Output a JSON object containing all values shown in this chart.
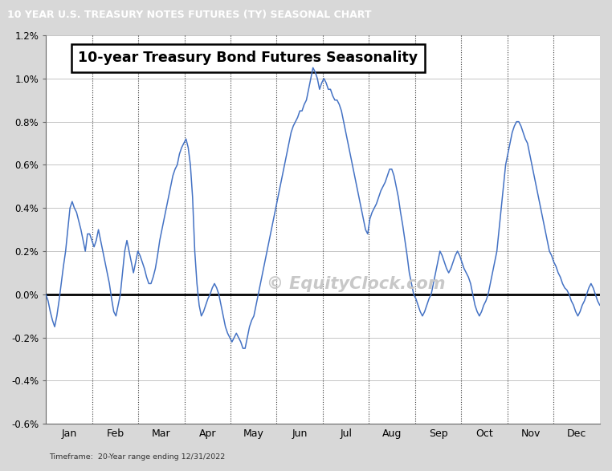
{
  "title_top": "10 YEAR U.S. TREASURY NOTES FUTURES (TY) SEASONAL CHART",
  "title_inner": "10-year Treasury Bond Futures Seasonality",
  "subtitle": "Timeframe:  20-Year range ending 12/31/2022",
  "watermark": "© EquityClock.com",
  "line_color": "#4472C4",
  "background_color": "#ffffff",
  "top_bar_color": "#1f1f3a",
  "top_bar_text_color": "#ffffff",
  "ylim": [
    -0.006,
    0.012
  ],
  "yticks": [
    -0.006,
    -0.004,
    -0.002,
    0.0,
    0.002,
    0.004,
    0.006,
    0.008,
    0.01,
    0.012
  ],
  "ytick_labels": [
    "-0.6%",
    "-0.4%",
    "-0.2%",
    "0.0%",
    "0.2%",
    "0.4%",
    "0.6%",
    "0.8%",
    "1.0%",
    "1.2%"
  ],
  "months": [
    "Jan",
    "Feb",
    "Mar",
    "Apr",
    "May",
    "Jun",
    "Jul",
    "Aug",
    "Sep",
    "Oct",
    "Nov",
    "Dec"
  ],
  "y_values": [
    0.0,
    -0.0003,
    -0.0008,
    -0.0012,
    -0.0015,
    -0.001,
    -0.0003,
    0.0005,
    0.0013,
    0.002,
    0.003,
    0.004,
    0.0043,
    0.004,
    0.0038,
    0.0034,
    0.003,
    0.0025,
    0.002,
    0.0028,
    0.0028,
    0.0025,
    0.0022,
    0.0025,
    0.003,
    0.0025,
    0.002,
    0.0015,
    0.001,
    0.0005,
    -0.0002,
    -0.0008,
    -0.001,
    -0.0005,
    0.0,
    0.001,
    0.002,
    0.0025,
    0.002,
    0.0015,
    0.001,
    0.0015,
    0.002,
    0.0018,
    0.0015,
    0.0012,
    0.0008,
    0.0005,
    0.0005,
    0.0008,
    0.0012,
    0.0018,
    0.0025,
    0.003,
    0.0035,
    0.004,
    0.0045,
    0.005,
    0.0055,
    0.0058,
    0.006,
    0.0065,
    0.0068,
    0.007,
    0.0072,
    0.0068,
    0.006,
    0.0045,
    0.002,
    0.0005,
    -0.0005,
    -0.001,
    -0.0008,
    -0.0005,
    -0.0002,
    0.0,
    0.0003,
    0.0005,
    0.0003,
    0.0,
    -0.0005,
    -0.001,
    -0.0015,
    -0.0018,
    -0.002,
    -0.0022,
    -0.002,
    -0.0018,
    -0.002,
    -0.0022,
    -0.0025,
    -0.0025,
    -0.002,
    -0.0015,
    -0.0012,
    -0.001,
    -0.0005,
    0.0,
    0.0005,
    0.001,
    0.0015,
    0.002,
    0.0025,
    0.003,
    0.0035,
    0.004,
    0.0045,
    0.005,
    0.0055,
    0.006,
    0.0065,
    0.007,
    0.0075,
    0.0078,
    0.008,
    0.0082,
    0.0085,
    0.0085,
    0.0088,
    0.009,
    0.0095,
    0.01,
    0.0105,
    0.0103,
    0.01,
    0.0095,
    0.0098,
    0.01,
    0.0098,
    0.0095,
    0.0095,
    0.0092,
    0.009,
    0.009,
    0.0088,
    0.0085,
    0.008,
    0.0075,
    0.007,
    0.0065,
    0.006,
    0.0055,
    0.005,
    0.0045,
    0.004,
    0.0035,
    0.003,
    0.0028,
    0.0035,
    0.0038,
    0.004,
    0.0042,
    0.0045,
    0.0048,
    0.005,
    0.0052,
    0.0055,
    0.0058,
    0.0058,
    0.0055,
    0.005,
    0.0045,
    0.0038,
    0.0032,
    0.0025,
    0.0018,
    0.001,
    0.0005,
    0.0,
    -0.0002,
    -0.0005,
    -0.0008,
    -0.001,
    -0.0008,
    -0.0005,
    -0.0002,
    0.0,
    0.0005,
    0.001,
    0.0015,
    0.002,
    0.0018,
    0.0015,
    0.0012,
    0.001,
    0.0012,
    0.0015,
    0.0018,
    0.002,
    0.0018,
    0.0015,
    0.0012,
    0.001,
    0.0008,
    0.0005,
    0.0,
    -0.0005,
    -0.0008,
    -0.001,
    -0.0008,
    -0.0005,
    -0.0003,
    0.0,
    0.0005,
    0.001,
    0.0015,
    0.002,
    0.003,
    0.004,
    0.005,
    0.006,
    0.0065,
    0.007,
    0.0075,
    0.0078,
    0.008,
    0.008,
    0.0078,
    0.0075,
    0.0072,
    0.007,
    0.0065,
    0.006,
    0.0055,
    0.005,
    0.0045,
    0.004,
    0.0035,
    0.003,
    0.0025,
    0.002,
    0.0018,
    0.0015,
    0.0013,
    0.001,
    0.0008,
    0.0005,
    0.0003,
    0.0002,
    0.0,
    -0.0003,
    -0.0005,
    -0.0008,
    -0.001,
    -0.0008,
    -0.0005,
    -0.0003,
    0.0,
    0.0003,
    0.0005,
    0.0003,
    0.0,
    -0.0003,
    -0.0005
  ]
}
